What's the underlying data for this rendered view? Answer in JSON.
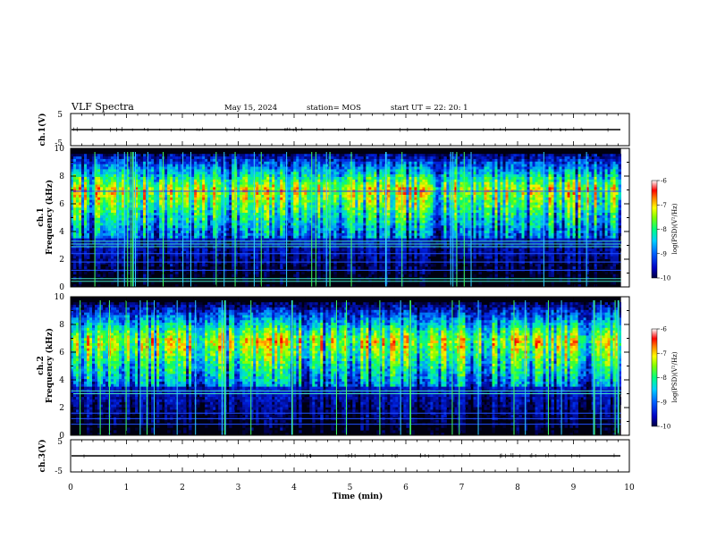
{
  "header": {
    "title": "VLF Spectra",
    "date": "May 15, 2024",
    "station": "station= MOS",
    "start": "start UT = 22: 20: 1"
  },
  "colors": {
    "background": "#ffffff",
    "spectrogram_floor": "#000010",
    "line_color": "#000000"
  },
  "chart_data": [
    {
      "type": "line",
      "panel": "ch1-waveform",
      "ylabel": "ch.1(V)",
      "ylim": [
        -5,
        5
      ],
      "yticks": [
        "5",
        "-5"
      ],
      "xlim": [
        0,
        10
      ],
      "level": 0
    },
    {
      "type": "heatmap",
      "panel": "ch1-spectrogram",
      "ylabel": "ch.1\nFrequency (kHz)",
      "ylabel_lines": [
        "ch.1",
        "Frequency (kHz)"
      ],
      "ylim": [
        0,
        10
      ],
      "yticks": [
        "0",
        "2",
        "4",
        "6",
        "8",
        "10"
      ],
      "xlim": [
        0,
        10
      ],
      "data_xmax": 9.85,
      "colorbar": {
        "label": "log(PSD)(V²/Hz)",
        "range": [
          -10,
          -6
        ],
        "ticks": [
          "-6",
          "-7",
          "-8",
          "-9",
          "-10"
        ]
      },
      "horizontal_lines_khz": [
        0.4,
        0.6,
        1.2,
        1.8,
        2.4,
        2.9,
        3.1,
        3.3,
        6.9
      ],
      "band_center_khz": 7.0,
      "seed": 7
    },
    {
      "type": "heatmap",
      "panel": "ch2-spectrogram",
      "ylabel": "ch.2\nFrequency (kHz)",
      "ylabel_lines": [
        "ch.2",
        "Frequency (kHz)"
      ],
      "ylim": [
        0,
        10
      ],
      "yticks": [
        "0",
        "2",
        "4",
        "6",
        "8",
        "10"
      ],
      "xlim": [
        0,
        10
      ],
      "data_xmax": 9.85,
      "colorbar": {
        "label": "log(PSD)(V²/Hz)",
        "range": [
          -10,
          -6
        ],
        "ticks": [
          "-6",
          "-7",
          "-8",
          "-9",
          "-10"
        ]
      },
      "horizontal_lines_khz": [
        0.8,
        1.2,
        1.6,
        3.0,
        3.2
      ],
      "band_center_khz": 6.8,
      "seed": 13
    },
    {
      "type": "line",
      "panel": "ch3-waveform",
      "ylabel": "ch.3(V)",
      "ylim": [
        -5,
        5
      ],
      "yticks": [
        "5",
        "-5"
      ],
      "xlim": [
        0,
        10
      ],
      "level": 0
    }
  ],
  "xaxis": {
    "label": "Time (min)",
    "ticks": [
      "0",
      "1",
      "2",
      "3",
      "4",
      "5",
      "6",
      "7",
      "8",
      "9",
      "10"
    ]
  }
}
